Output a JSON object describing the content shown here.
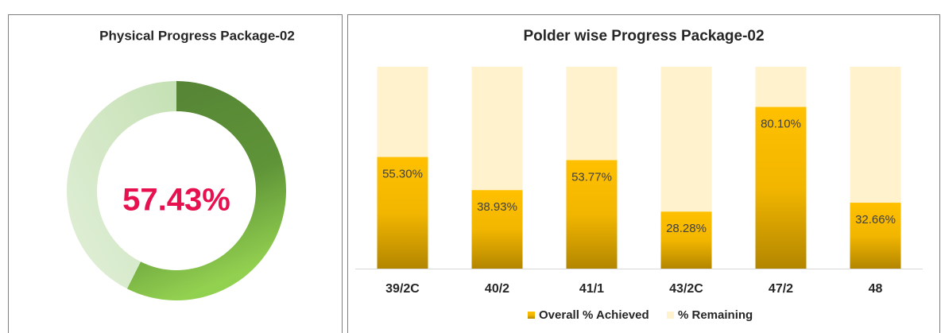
{
  "chart_data": [
    {
      "type": "pie",
      "title": "Physical Progress Package-02",
      "values": [
        57.43,
        42.57
      ],
      "value_labels": [
        "57.43%",
        null
      ],
      "colors": [
        "#548235",
        "#c5e0b4"
      ],
      "hole": true
    },
    {
      "type": "bar",
      "stacked": true,
      "title": "Polder wise Progress Package-02",
      "categories": [
        "39/2C",
        "40/2",
        "41/1",
        "43/2C",
        "47/2",
        "48"
      ],
      "series": [
        {
          "name": "Overall % Achieved",
          "color": "#ffc000",
          "values": [
            55.3,
            38.93,
            53.77,
            28.28,
            80.1,
            32.66
          ],
          "value_labels": [
            "55.30%",
            "38.93%",
            "53.77%",
            "28.28%",
            "80.10%",
            "32.66%"
          ]
        },
        {
          "name": "% Remaining",
          "color": "#fff2cc",
          "values": [
            44.7,
            61.07,
            46.23,
            71.72,
            19.9,
            67.34
          ]
        }
      ],
      "ylim": [
        0,
        100
      ],
      "legend": "bottom"
    }
  ]
}
